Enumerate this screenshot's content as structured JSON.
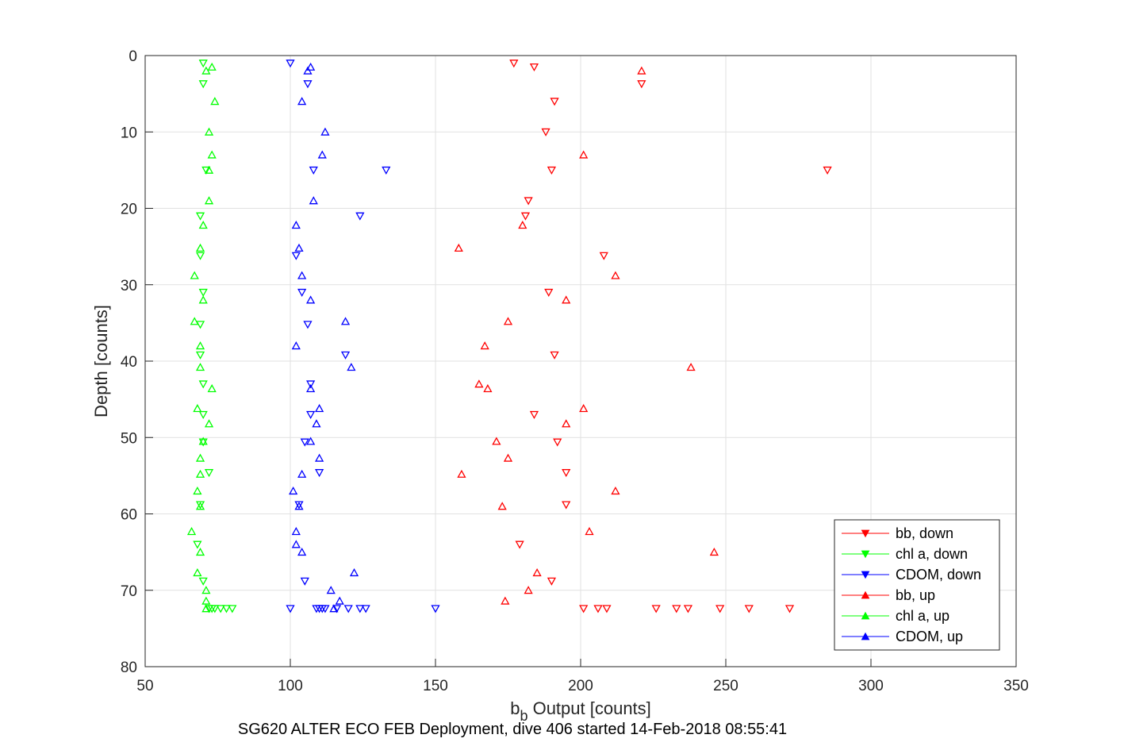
{
  "chart_data": {
    "type": "scatter",
    "title": "",
    "xlabel_main": "b",
    "xlabel_sub": "b",
    "xlabel_rest": " Output [counts]",
    "ylabel": "Depth [counts]",
    "footer": "SG620 ALTER ECO FEB Deployment, dive 406 started 14-Feb-2018 08:55:41",
    "xlim": [
      50,
      350
    ],
    "ylim": [
      0,
      80
    ],
    "y_reversed": true,
    "grid": true,
    "legend_position": "bottom-right",
    "xticks": [
      "50",
      "100",
      "150",
      "200",
      "250",
      "300",
      "350"
    ],
    "yticks": [
      "0",
      "10",
      "20",
      "30",
      "40",
      "50",
      "60",
      "70",
      "80"
    ],
    "series": [
      {
        "name": "bb, down",
        "color": "#ff0000",
        "marker": "triangle-down",
        "points": [
          [
            177,
            1
          ],
          [
            184,
            1.5
          ],
          [
            221,
            3.7
          ],
          [
            191,
            6
          ],
          [
            188,
            10
          ],
          [
            190,
            15
          ],
          [
            285,
            15
          ],
          [
            182,
            19
          ],
          [
            181,
            21
          ],
          [
            208,
            26.2
          ],
          [
            189,
            31
          ],
          [
            191,
            39.2
          ],
          [
            184,
            47
          ],
          [
            192,
            50.6
          ],
          [
            195,
            54.6
          ],
          [
            195,
            58.8
          ],
          [
            179,
            64
          ],
          [
            190,
            68.8
          ],
          [
            201,
            72.4
          ],
          [
            206,
            72.4
          ],
          [
            209,
            72.4
          ],
          [
            226,
            72.4
          ],
          [
            233,
            72.4
          ],
          [
            237,
            72.4
          ],
          [
            248,
            72.4
          ],
          [
            258,
            72.4
          ],
          [
            272,
            72.4
          ]
        ]
      },
      {
        "name": "chl a, down",
        "color": "#00ff00",
        "marker": "triangle-down",
        "points": [
          [
            70,
            1
          ],
          [
            70,
            3.7
          ],
          [
            71,
            15
          ],
          [
            69,
            21
          ],
          [
            69,
            26.2
          ],
          [
            70,
            31
          ],
          [
            69,
            35.2
          ],
          [
            69,
            39.2
          ],
          [
            70,
            43
          ],
          [
            70,
            47
          ],
          [
            70,
            50.6
          ],
          [
            72,
            54.6
          ],
          [
            69,
            58.8
          ],
          [
            68,
            64
          ],
          [
            70,
            68.8
          ],
          [
            72,
            72.4
          ],
          [
            73,
            72.4
          ],
          [
            74,
            72.4
          ],
          [
            76,
            72.4
          ],
          [
            78,
            72.4
          ],
          [
            80,
            72.4
          ]
        ]
      },
      {
        "name": "CDOM, down",
        "color": "#0000ff",
        "marker": "triangle-down",
        "points": [
          [
            100,
            1
          ],
          [
            106,
            3.7
          ],
          [
            133,
            15
          ],
          [
            108,
            15
          ],
          [
            124,
            21
          ],
          [
            102,
            26.2
          ],
          [
            104,
            31
          ],
          [
            106,
            35.2
          ],
          [
            119,
            39.2
          ],
          [
            107,
            43
          ],
          [
            107,
            47
          ],
          [
            105,
            50.6
          ],
          [
            110,
            54.6
          ],
          [
            103,
            58.8
          ],
          [
            105,
            68.8
          ],
          [
            100,
            72.4
          ],
          [
            109,
            72.4
          ],
          [
            110,
            72.4
          ],
          [
            111,
            72.4
          ],
          [
            112,
            72.4
          ],
          [
            116,
            72.4
          ],
          [
            120,
            72.4
          ],
          [
            124,
            72.4
          ],
          [
            126,
            72.4
          ],
          [
            150,
            72.4
          ]
        ]
      },
      {
        "name": "bb, up",
        "color": "#ff0000",
        "marker": "triangle-up",
        "points": [
          [
            221,
            2
          ],
          [
            201,
            13
          ],
          [
            180,
            22.2
          ],
          [
            158,
            25.2
          ],
          [
            212,
            28.8
          ],
          [
            195,
            32
          ],
          [
            175,
            34.8
          ],
          [
            167,
            38
          ],
          [
            238,
            40.8
          ],
          [
            165,
            43
          ],
          [
            168,
            43.6
          ],
          [
            201,
            46.2
          ],
          [
            195,
            48.2
          ],
          [
            171,
            50.5
          ],
          [
            175,
            52.7
          ],
          [
            159,
            54.8
          ],
          [
            212,
            57
          ],
          [
            173,
            59
          ],
          [
            203,
            62.3
          ],
          [
            246,
            65
          ],
          [
            185,
            67.7
          ],
          [
            182,
            70
          ],
          [
            174,
            71.4
          ]
        ]
      },
      {
        "name": "chl a, up",
        "color": "#00ff00",
        "marker": "triangle-up",
        "points": [
          [
            73,
            1.5
          ],
          [
            71,
            2
          ],
          [
            74,
            6
          ],
          [
            72,
            10
          ],
          [
            73,
            13
          ],
          [
            72,
            15
          ],
          [
            72,
            19
          ],
          [
            70,
            22.2
          ],
          [
            69,
            25.2
          ],
          [
            67,
            28.8
          ],
          [
            70,
            32
          ],
          [
            67,
            34.8
          ],
          [
            69,
            38
          ],
          [
            69,
            40.8
          ],
          [
            73,
            43.6
          ],
          [
            68,
            46.2
          ],
          [
            72,
            48.2
          ],
          [
            70,
            50.5
          ],
          [
            69,
            52.7
          ],
          [
            69,
            54.8
          ],
          [
            68,
            57
          ],
          [
            69,
            59
          ],
          [
            66,
            62.3
          ],
          [
            69,
            65
          ],
          [
            68,
            67.7
          ],
          [
            71,
            70
          ],
          [
            71,
            71.4
          ],
          [
            71,
            72.4
          ]
        ]
      },
      {
        "name": "CDOM, up",
        "color": "#0000ff",
        "marker": "triangle-up",
        "points": [
          [
            107,
            1.5
          ],
          [
            106,
            2
          ],
          [
            104,
            6
          ],
          [
            112,
            10
          ],
          [
            111,
            13
          ],
          [
            108,
            19
          ],
          [
            102,
            22.2
          ],
          [
            103,
            25.2
          ],
          [
            104,
            28.8
          ],
          [
            107,
            32
          ],
          [
            119,
            34.8
          ],
          [
            102,
            38
          ],
          [
            121,
            40.8
          ],
          [
            107,
            43.6
          ],
          [
            110,
            46.2
          ],
          [
            109,
            48.2
          ],
          [
            107,
            50.5
          ],
          [
            110,
            52.7
          ],
          [
            104,
            54.8
          ],
          [
            101,
            57
          ],
          [
            103,
            59
          ],
          [
            102,
            62.3
          ],
          [
            102,
            64
          ],
          [
            104,
            65
          ],
          [
            122,
            67.7
          ],
          [
            114,
            70
          ],
          [
            117,
            71.4
          ],
          [
            115,
            72.4
          ]
        ]
      }
    ]
  }
}
